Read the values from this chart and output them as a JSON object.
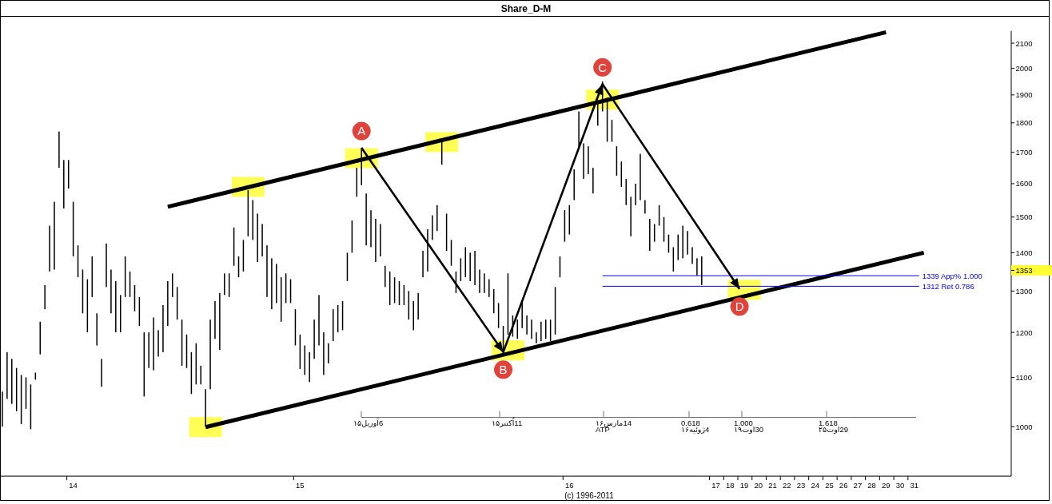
{
  "chart_data": {
    "type": "bar",
    "title": "Share_D-M",
    "categories": [
      null,
      null,
      null,
      null,
      null,
      null,
      null,
      null,
      null,
      null,
      null,
      null,
      null,
      null,
      null,
      "14",
      null,
      null,
      null,
      null,
      null,
      null,
      null,
      null,
      null,
      null,
      null,
      null,
      null,
      null,
      null,
      null,
      null,
      null,
      null,
      null,
      null,
      null,
      null,
      null,
      null,
      null,
      null,
      null,
      null,
      null,
      null,
      null,
      null,
      null,
      null,
      null,
      null,
      null,
      null,
      null,
      null,
      null,
      null,
      null,
      null,
      null,
      null,
      "15",
      null,
      null,
      null,
      null,
      null,
      null,
      null,
      null,
      null,
      null,
      null,
      null,
      null,
      null,
      null,
      null,
      null,
      null,
      null,
      null,
      null,
      null,
      null,
      null,
      null,
      null,
      null,
      null,
      null,
      null,
      null,
      null,
      null,
      null,
      null,
      null,
      null,
      null,
      null,
      null,
      null,
      null,
      null,
      null,
      null,
      null,
      null,
      null,
      null,
      null,
      null,
      null,
      null,
      null,
      null,
      null,
      "16",
      null,
      null,
      null,
      null,
      null,
      null,
      null,
      null,
      null,
      null,
      null,
      null,
      null,
      null,
      null,
      null,
      null,
      null,
      null,
      null,
      null,
      null,
      null,
      null,
      null,
      null,
      null,
      null,
      null,
      null,
      "17",
      null,
      null,
      "18",
      null,
      null,
      "19",
      null,
      null,
      "20",
      null,
      null,
      "21",
      null,
      null,
      "22",
      null,
      null,
      "23",
      null,
      null,
      "24",
      null,
      null,
      "25",
      null,
      null,
      "26",
      null,
      null,
      "27",
      null,
      null,
      "28",
      null,
      null,
      "29",
      null,
      null,
      "30",
      null,
      null,
      "31",
      null,
      null,
      null,
      null,
      null,
      null,
      null,
      null,
      null,
      null,
      null,
      null,
      null,
      null,
      null,
      null,
      null,
      null,
      null,
      null
    ],
    "ylim": [
      910,
      2150
    ],
    "log": "y",
    "yticks": [
      1000,
      1100,
      1200,
      1300,
      1353,
      1400,
      1500,
      1600,
      1700,
      1800,
      1900,
      2000,
      2100
    ],
    "series": [
      {
        "color": "#000000",
        "base": [
          1000,
          1055,
          1045,
          1030,
          1005,
          1035,
          995,
          1095,
          1150,
          1255,
          1350,
          1355,
          1650,
          1525,
          1585,
          1390,
          1335,
          1245,
          1200,
          1285,
          1170,
          1080,
          1310,
          1245,
          1200,
          1200,
          1285,
          1285,
          1250,
          1215,
          1060,
          1120,
          1115,
          1145,
          1155,
          1215,
          1285,
          1230,
          1125,
          1120,
          1065,
          1085,
          1085,
          1000,
          1075,
          1185,
          1160,
          1290,
          1285,
          1365,
          1335,
          1350,
          1445,
          1435,
          1375,
          1390,
          1285,
          1255,
          1270,
          1225,
          1270,
          1270,
          1170,
          1118,
          1105,
          1090,
          1140,
          1170,
          1105,
          1130,
          1180,
          1200,
          1205,
          1325,
          1400,
          1560,
          1595,
          1420,
          1415,
          1375,
          1390,
          1310,
          1265,
          1270,
          1265,
          1265,
          1230,
          1205,
          1230,
          1335,
          1350,
          1435,
          1460,
          1660,
          1405,
          1365,
          1295,
          1325,
          1335,
          1325,
          1315,
          1295,
          1295,
          1285,
          1245,
          1210,
          1160,
          1195,
          1190,
          1185,
          1210,
          1195,
          1185,
          1175,
          1180,
          1185,
          1180,
          1195,
          1335,
          1430,
          1450,
          1550,
          1710,
          1615,
          1630,
          1570,
          1790,
          1840,
          1735,
          1735,
          1625,
          1590,
          1535,
          1445,
          1535,
          1550,
          1510,
          1405,
          1430,
          1475,
          1430,
          1400,
          1350,
          1380,
          1385,
          1395,
          1370,
          1340,
          1315,
          null,
          null,
          null,
          null,
          null,
          null,
          null,
          null,
          null,
          null,
          null,
          null,
          null,
          null,
          null,
          null,
          null,
          null,
          null,
          null,
          null,
          null,
          null,
          null,
          null,
          null,
          null,
          null,
          null,
          null,
          null,
          null,
          null,
          null,
          null,
          null,
          null,
          null,
          null,
          null,
          null,
          null,
          null,
          null,
          null,
          null,
          null,
          null,
          null,
          null,
          null,
          null,
          null,
          null,
          null,
          null,
          null,
          null,
          null,
          null,
          null,
          null,
          null,
          null,
          null
        ],
        "values": [
          70,
          100,
          95,
          90,
          100,
          65,
          90,
          15,
          75,
          60,
          125,
          190,
          120,
          150,
          90,
          155,
          85,
          110,
          130,
          105,
          75,
          60,
          115,
          110,
          125,
          90,
          105,
          65,
          65,
          70,
          140,
          80,
          120,
          60,
          110,
          110,
          60,
          80,
          105,
          75,
          90,
          90,
          40,
          75,
          155,
          90,
          135,
          55,
          60,
          105,
          55,
          85,
          135,
          115,
          135,
          90,
          135,
          130,
          100,
          110,
          75,
          60,
          85,
          77,
          65,
          65,
          90,
          120,
          95,
          45,
          75,
          65,
          70,
          75,
          90,
          90,
          120,
          150,
          105,
          120,
          90,
          55,
          85,
          65,
          60,
          50,
          70,
          70,
          65,
          70,
          115,
          70,
          75,
          75,
          105,
          70,
          55,
          60,
          80,
          75,
          90,
          60,
          50,
          45,
          60,
          60,
          55,
          150,
          50,
          45,
          65,
          45,
          45,
          25,
          45,
          45,
          50,
          115,
          55,
          90,
          85,
          95,
          130,
          115,
          90,
          80,
          80,
          110,
          155,
          75,
          95,
          80,
          80,
          115,
          65,
          145,
          40,
          90,
          50,
          60,
          70,
          50,
          65,
          70,
          90,
          65,
          45,
          45,
          75,
          null,
          null,
          null,
          null,
          null,
          null,
          null,
          null,
          null,
          null,
          null,
          null,
          null,
          null,
          null,
          null,
          null,
          null,
          null,
          null,
          null,
          null,
          null,
          null,
          null,
          null,
          null,
          null,
          null,
          null,
          null,
          null,
          null,
          null,
          null,
          null,
          null,
          null,
          null,
          null,
          null,
          null,
          null,
          null,
          null,
          null,
          null,
          null,
          null,
          null,
          null,
          null,
          null,
          null,
          null,
          null,
          null,
          null,
          null,
          null,
          null,
          null,
          null,
          null,
          null
        ]
      },
      {
        "type": "line",
        "color": "#000000",
        "values": [
          null,
          null,
          null,
          null,
          null,
          null,
          null,
          null,
          null,
          null,
          null,
          null,
          null,
          null,
          null,
          null,
          null,
          null,
          null,
          null,
          null,
          null,
          null,
          null,
          null,
          null,
          null,
          null,
          null,
          null,
          null,
          null,
          null,
          null,
          null,
          1530,
          null,
          null,
          null,
          null,
          null,
          null,
          null,
          null,
          null,
          null,
          null,
          null,
          null,
          null,
          null,
          null,
          null,
          null,
          null,
          null,
          null,
          null,
          null,
          null,
          null,
          null,
          null,
          null,
          null,
          null,
          null,
          null,
          null,
          null,
          null,
          null,
          null,
          null,
          null,
          null,
          null,
          null,
          null,
          null,
          null,
          null,
          null,
          null,
          null,
          null,
          null,
          null,
          null,
          null,
          null,
          null,
          null,
          null,
          null,
          null,
          null,
          null,
          null,
          null,
          null,
          null,
          null,
          null,
          null,
          null,
          null,
          null,
          null,
          null,
          null,
          null,
          null,
          null,
          null,
          null,
          null,
          null,
          null,
          null,
          null,
          null,
          null,
          null,
          null,
          null,
          null,
          null,
          null,
          null,
          null,
          null,
          null,
          null,
          null,
          null,
          null,
          null,
          null,
          null,
          null,
          null,
          null,
          null,
          null,
          null,
          null,
          null,
          null,
          null,
          null,
          null,
          null,
          null,
          null,
          null,
          null,
          null,
          null,
          null,
          null,
          null,
          null,
          null,
          null,
          null,
          null,
          null,
          null,
          null,
          null,
          null,
          null,
          null,
          null,
          null,
          null,
          null,
          null,
          null,
          null,
          null,
          null,
          null,
          null,
          null,
          null,
          2145,
          null,
          null,
          null,
          null,
          null,
          null,
          null,
          null,
          null,
          null,
          null,
          null,
          null,
          null,
          null,
          null,
          null,
          null,
          null,
          null,
          null,
          null,
          null,
          null,
          null,
          null
        ]
      },
      {
        "type": "line",
        "color": "#000000",
        "values": [
          null,
          null,
          null,
          null,
          null,
          null,
          null,
          null,
          null,
          null,
          null,
          null,
          null,
          null,
          null,
          null,
          null,
          null,
          null,
          null,
          null,
          null,
          null,
          null,
          null,
          null,
          null,
          null,
          null,
          null,
          null,
          null,
          null,
          null,
          null,
          null,
          null,
          null,
          null,
          null,
          null,
          null,
          null,
          999,
          null,
          null,
          null,
          null,
          null,
          null,
          null,
          null,
          null,
          null,
          null,
          null,
          null,
          null,
          null,
          null,
          null,
          null,
          null,
          null,
          null,
          null,
          null,
          null,
          null,
          null,
          null,
          null,
          null,
          null,
          null,
          null,
          null,
          null,
          null,
          null,
          null,
          null,
          null,
          null,
          null,
          null,
          null,
          null,
          null,
          null,
          null,
          null,
          null,
          null,
          null,
          null,
          null,
          null,
          null,
          null,
          null,
          null,
          null,
          null,
          null,
          null,
          null,
          null,
          null,
          null,
          null,
          null,
          null,
          null,
          null,
          null,
          null,
          null,
          null,
          null,
          null,
          null,
          null,
          null,
          null,
          null,
          null,
          null,
          null,
          null,
          null,
          null,
          null,
          null,
          null,
          null,
          null,
          null,
          null,
          null,
          null,
          null,
          null,
          null,
          null,
          null,
          null,
          null,
          null,
          null,
          null,
          null,
          null,
          null,
          null,
          null,
          null,
          null,
          null,
          null,
          null,
          null,
          null,
          null,
          null,
          null,
          null,
          null,
          null,
          null,
          null,
          null,
          null,
          null,
          null,
          null,
          null,
          null,
          null,
          null,
          null,
          null,
          null,
          null,
          null,
          null,
          null,
          null,
          null,
          null,
          null,
          null,
          null,
          null,
          null,
          1400,
          null,
          null,
          null,
          null,
          null,
          null,
          null,
          null,
          null,
          null,
          null,
          null,
          null,
          null,
          null,
          null,
          null,
          null
        ]
      },
      {
        "type": "line",
        "name": "1339 App% 1.000",
        "color": "#0000ff",
        "values": [
          null,
          null,
          null,
          null,
          null,
          null,
          null,
          null,
          null,
          null,
          null,
          null,
          null,
          null,
          null,
          null,
          null,
          null,
          null,
          null,
          null,
          null,
          null,
          null,
          null,
          null,
          null,
          null,
          null,
          null,
          null,
          null,
          null,
          null,
          null,
          null,
          null,
          null,
          null,
          null,
          null,
          null,
          null,
          null,
          null,
          null,
          null,
          null,
          null,
          null,
          null,
          null,
          null,
          null,
          null,
          null,
          null,
          null,
          null,
          null,
          null,
          null,
          null,
          null,
          null,
          null,
          null,
          null,
          null,
          null,
          null,
          null,
          null,
          null,
          null,
          null,
          null,
          null,
          null,
          null,
          null,
          null,
          null,
          null,
          null,
          null,
          null,
          null,
          null,
          null,
          null,
          null,
          null,
          null,
          null,
          null,
          null,
          null,
          null,
          null,
          null,
          null,
          null,
          null,
          null,
          null,
          null,
          null,
          null,
          null,
          null,
          null,
          null,
          null,
          null,
          null,
          null,
          null,
          null,
          null,
          null,
          null,
          null,
          null,
          null,
          null,
          null,
          1339,
          null,
          null,
          null,
          null,
          null,
          null,
          null,
          null,
          null,
          null,
          null,
          null,
          null,
          null,
          null,
          null,
          null,
          null,
          null,
          null,
          null,
          null,
          null,
          null,
          null,
          null,
          null,
          null,
          null,
          null,
          null,
          null,
          null,
          null,
          null,
          null,
          null,
          null,
          null,
          null,
          null,
          null,
          null,
          null,
          null,
          null,
          null,
          null,
          null,
          null,
          null,
          null,
          null,
          null,
          null,
          null,
          null,
          null,
          null,
          null,
          null,
          null,
          null,
          null,
          null,
          null,
          1339,
          null,
          null,
          null,
          null,
          null,
          null,
          null,
          null,
          null,
          null,
          null,
          null,
          null,
          null,
          null,
          null,
          null,
          null,
          null
        ]
      },
      {
        "type": "line",
        "name": "1312 Ret 0.786",
        "color": "#0000ff",
        "values": [
          null,
          null,
          null,
          null,
          null,
          null,
          null,
          null,
          null,
          null,
          null,
          null,
          null,
          null,
          null,
          null,
          null,
          null,
          null,
          null,
          null,
          null,
          null,
          null,
          null,
          null,
          null,
          null,
          null,
          null,
          null,
          null,
          null,
          null,
          null,
          null,
          null,
          null,
          null,
          null,
          null,
          null,
          null,
          null,
          null,
          null,
          null,
          null,
          null,
          null,
          null,
          null,
          null,
          null,
          null,
          null,
          null,
          null,
          null,
          null,
          null,
          null,
          null,
          null,
          null,
          null,
          null,
          null,
          null,
          null,
          null,
          null,
          null,
          null,
          null,
          null,
          null,
          null,
          null,
          null,
          null,
          null,
          null,
          null,
          null,
          null,
          null,
          null,
          null,
          null,
          null,
          null,
          null,
          null,
          null,
          null,
          null,
          null,
          null,
          null,
          null,
          null,
          null,
          null,
          null,
          null,
          null,
          null,
          null,
          null,
          null,
          null,
          null,
          null,
          null,
          null,
          null,
          null,
          null,
          null,
          null,
          null,
          null,
          null,
          null,
          null,
          null,
          1312,
          null,
          null,
          null,
          null,
          null,
          null,
          null,
          null,
          null,
          null,
          null,
          null,
          null,
          null,
          null,
          null,
          null,
          null,
          null,
          null,
          null,
          null,
          null,
          null,
          null,
          null,
          null,
          null,
          null,
          null,
          null,
          null,
          null,
          null,
          null,
          null,
          null,
          null,
          null,
          null,
          null,
          null,
          null,
          null,
          null,
          null,
          null,
          null,
          null,
          null,
          null,
          null,
          null,
          null,
          null,
          null,
          null,
          null,
          null,
          null,
          null,
          null,
          null,
          null,
          null,
          null,
          1312,
          null,
          null,
          null,
          null,
          null,
          null,
          null,
          null,
          null,
          null,
          null,
          null,
          null,
          null,
          null,
          null,
          null,
          null,
          null
        ]
      },
      {
        "type": "line",
        "color": "#000000",
        "values": [
          null,
          null,
          null,
          null,
          null,
          null,
          null,
          null,
          null,
          null,
          null,
          null,
          null,
          null,
          null,
          null,
          null,
          null,
          null,
          null,
          null,
          null,
          null,
          null,
          null,
          null,
          null,
          null,
          null,
          null,
          null,
          null,
          null,
          null,
          null,
          null,
          null,
          null,
          null,
          null,
          null,
          null,
          null,
          null,
          null,
          null,
          null,
          null,
          null,
          null,
          null,
          null,
          null,
          null,
          null,
          null,
          null,
          null,
          null,
          null,
          null,
          null,
          null,
          null,
          null,
          null,
          null,
          null,
          null,
          null,
          null,
          null,
          null,
          null,
          null,
          null,
          1715,
          null,
          null,
          null,
          null,
          null,
          null,
          null,
          null,
          null,
          null,
          null,
          null,
          null,
          null,
          null,
          null,
          null,
          null,
          null,
          null,
          null,
          null,
          null,
          null,
          null,
          null,
          null,
          null,
          null,
          1155,
          null,
          null,
          null,
          null,
          null,
          null,
          null,
          null,
          null,
          null,
          null,
          null,
          null,
          null,
          null,
          null,
          null,
          null,
          null,
          null,
          1940,
          null,
          null,
          null,
          null,
          null,
          null,
          null,
          null,
          null,
          null,
          null,
          null,
          null,
          null,
          null,
          null,
          null,
          null,
          null,
          null,
          null,
          null,
          null,
          null,
          null,
          null,
          null,
          null,
          1305,
          null,
          null,
          null,
          null,
          null,
          null,
          null,
          null,
          null,
          null,
          null,
          null,
          null,
          null,
          null,
          null,
          null,
          null,
          null,
          null,
          null,
          null,
          null,
          null,
          null,
          null,
          null,
          null,
          null,
          null,
          null,
          null,
          null,
          null,
          null,
          null,
          null,
          null,
          null,
          null,
          null,
          null,
          null,
          null,
          null,
          null,
          null,
          null,
          null,
          null,
          null,
          null,
          null,
          null,
          null,
          null,
          null
        ],
        "value_labels": [
          null,
          null,
          null,
          null,
          null,
          null,
          null,
          null,
          null,
          null,
          null,
          null,
          null,
          null,
          null,
          null,
          null,
          null,
          null,
          null,
          null,
          null,
          null,
          null,
          null,
          null,
          null,
          null,
          null,
          null,
          null,
          null,
          null,
          null,
          null,
          null,
          null,
          null,
          null,
          null,
          null,
          null,
          null,
          null,
          null,
          null,
          null,
          null,
          null,
          null,
          null,
          null,
          null,
          null,
          null,
          null,
          null,
          null,
          null,
          null,
          null,
          null,
          null,
          null,
          null,
          null,
          null,
          null,
          null,
          null,
          null,
          null,
          null,
          null,
          null,
          null,
          "A",
          null,
          null,
          null,
          null,
          null,
          null,
          null,
          null,
          null,
          null,
          null,
          null,
          null,
          null,
          null,
          null,
          null,
          null,
          null,
          null,
          null,
          null,
          null,
          null,
          null,
          null,
          null,
          null,
          null,
          "B",
          null,
          null,
          null,
          null,
          null,
          null,
          null,
          null,
          null,
          null,
          null,
          null,
          null,
          null,
          null,
          null,
          null,
          null,
          null,
          null,
          "C",
          null,
          null,
          null,
          null,
          null,
          null,
          null,
          null,
          null,
          null,
          null,
          null,
          null,
          null,
          null,
          null,
          null,
          null,
          null,
          null,
          null,
          null,
          null,
          null,
          null,
          null,
          null,
          null,
          "D",
          null,
          null,
          null,
          null,
          null,
          null,
          null,
          null,
          null,
          null,
          null,
          null,
          null,
          null,
          null,
          null,
          null,
          null,
          null,
          null,
          null,
          null,
          null,
          null,
          null,
          null,
          null,
          null,
          null,
          null,
          null,
          null,
          null,
          null,
          null,
          null,
          null,
          null,
          null,
          null,
          null,
          null,
          null,
          null,
          null,
          null,
          null,
          null,
          null,
          null,
          null,
          null,
          null,
          null,
          null,
          null,
          null
        ]
      },
      {
        "type": "scatter",
        "marker": "square",
        "color": "#ffff55",
        "values": [
          null,
          null,
          null,
          null,
          null,
          null,
          null,
          null,
          null,
          null,
          null,
          null,
          null,
          null,
          null,
          null,
          null,
          null,
          null,
          null,
          null,
          null,
          null,
          null,
          null,
          null,
          null,
          null,
          null,
          null,
          null,
          null,
          null,
          null,
          null,
          null,
          null,
          null,
          null,
          null,
          null,
          null,
          null,
          999,
          null,
          null,
          null,
          null,
          null,
          null,
          null,
          null,
          1590,
          null,
          null,
          null,
          null,
          null,
          null,
          null,
          null,
          null,
          null,
          null,
          null,
          null,
          null,
          null,
          null,
          null,
          null,
          null,
          null,
          null,
          null,
          null,
          1681,
          null,
          null,
          null,
          null,
          null,
          null,
          null,
          null,
          null,
          null,
          null,
          null,
          null,
          null,
          null,
          null,
          1734,
          null,
          null,
          null,
          null,
          null,
          null,
          null,
          null,
          null,
          null,
          null,
          null,
          null,
          1159,
          null,
          null,
          null,
          null,
          null,
          null,
          null,
          null,
          null,
          null,
          null,
          null,
          null,
          null,
          null,
          null,
          null,
          null,
          null,
          1883,
          null,
          null,
          null,
          null,
          null,
          null,
          null,
          null,
          null,
          null,
          null,
          null,
          null,
          null,
          null,
          null,
          null,
          null,
          null,
          null,
          null,
          null,
          null,
          null,
          null,
          null,
          null,
          null,
          null,
          1303,
          null,
          null,
          null,
          null,
          null,
          null,
          null,
          null,
          null,
          null,
          null,
          null,
          null,
          null,
          null,
          null,
          null,
          null,
          null,
          null,
          null,
          null,
          null,
          null,
          null,
          null,
          null,
          null,
          null,
          null,
          null,
          null,
          null,
          null,
          null,
          null,
          null,
          null,
          null,
          null,
          null,
          null,
          null,
          null,
          null,
          null,
          null,
          null,
          null,
          null,
          null,
          null,
          null,
          null,
          null,
          null
        ]
      }
    ],
    "annotations": [
      "6آوریل۱۵",
      "11اُکتبر۱۵",
      "14مارس۱۶\nATP",
      "0.618\n4ژوئیه۱۶",
      "1.000\n30اوت۱۹",
      "1.618\n29اوت۲۵",
      "(c) 1996-2011"
    ]
  }
}
